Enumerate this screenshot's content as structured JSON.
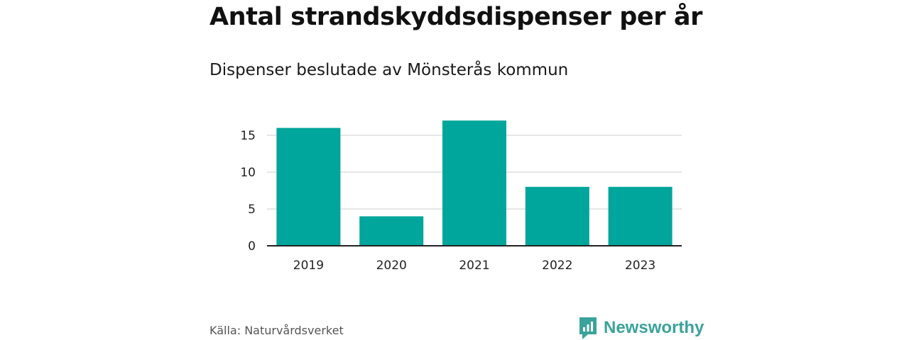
{
  "header": {
    "title": "Antal strandskyddsdispenser per år",
    "subtitle": "Dispenser beslutade av Mönsterås kommun"
  },
  "footer": {
    "source": "Källa: Naturvårdsverket",
    "brand": "Newsworthy"
  },
  "colors": {
    "bar": "#00a59b",
    "grid": "#dddddd",
    "axis": "#222222",
    "brand": "#3aa39b"
  },
  "chart_data": {
    "type": "bar",
    "title": "Antal strandskyddsdispenser per år",
    "subtitle": "Dispenser beslutade av Mönsterås kommun",
    "categories": [
      "2019",
      "2020",
      "2021",
      "2022",
      "2023"
    ],
    "values": [
      16,
      4,
      17,
      8,
      8
    ],
    "yticks": [
      0,
      5,
      10,
      15
    ],
    "ylim": [
      0,
      17
    ],
    "xlabel": "",
    "ylabel": "",
    "grid": true
  }
}
